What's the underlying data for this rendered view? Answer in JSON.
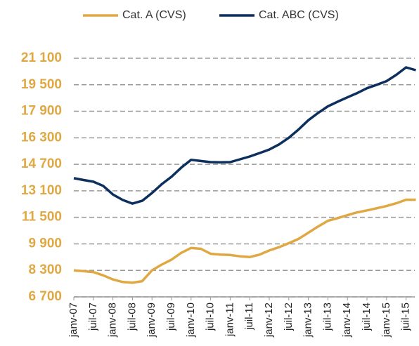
{
  "chart_data": {
    "type": "line",
    "categories": [
      "janv-07",
      null,
      "juil-07",
      null,
      "janv-08",
      null,
      "juil-08",
      null,
      "janv-09",
      null,
      "juil-09",
      null,
      "janv-10",
      null,
      "juil-10",
      null,
      "janv-11",
      null,
      "juil-11",
      null,
      "janv-12",
      null,
      "juil-12",
      null,
      "janv-13",
      null,
      "juil-13",
      null,
      "janv-14",
      null,
      "juil-14",
      null,
      "janv-15",
      null,
      "juil-15",
      null
    ],
    "series": [
      {
        "name": "Cat. A (CVS)",
        "color": "#e0a843",
        "values": [
          8300,
          8250,
          8200,
          8000,
          7750,
          7600,
          7550,
          7650,
          8300,
          8650,
          8950,
          9360,
          9650,
          9600,
          9300,
          9250,
          9230,
          9150,
          9100,
          9250,
          9500,
          9700,
          9940,
          10200,
          10570,
          10950,
          11290,
          11450,
          11630,
          11800,
          11920,
          12050,
          12180,
          12350,
          12560,
          12560
        ]
      },
      {
        "name": "Cat. ABC (CVS)",
        "color": "#0d2f5e",
        "values": [
          13860,
          13750,
          13650,
          13400,
          12880,
          12550,
          12330,
          12500,
          12970,
          13500,
          13950,
          14500,
          14970,
          14900,
          14830,
          14820,
          14830,
          15000,
          15170,
          15380,
          15590,
          15900,
          16300,
          16800,
          17360,
          17800,
          18200,
          18480,
          18740,
          19000,
          19290,
          19500,
          19720,
          20100,
          20550,
          20380
        ]
      }
    ],
    "ylim": [
      6700,
      21100
    ],
    "yticks": [
      {
        "value": 6700,
        "label": "6 700"
      },
      {
        "value": 8300,
        "label": "8 300"
      },
      {
        "value": 9900,
        "label": "9 900"
      },
      {
        "value": 11500,
        "label": "11 500"
      },
      {
        "value": 13100,
        "label": "13 100"
      },
      {
        "value": 14700,
        "label": "14 700"
      },
      {
        "value": 16300,
        "label": "16 300"
      },
      {
        "value": 17900,
        "label": "17 900"
      },
      {
        "value": 19500,
        "label": "19 500"
      },
      {
        "value": 21100,
        "label": "21 100"
      }
    ],
    "grid": true
  }
}
